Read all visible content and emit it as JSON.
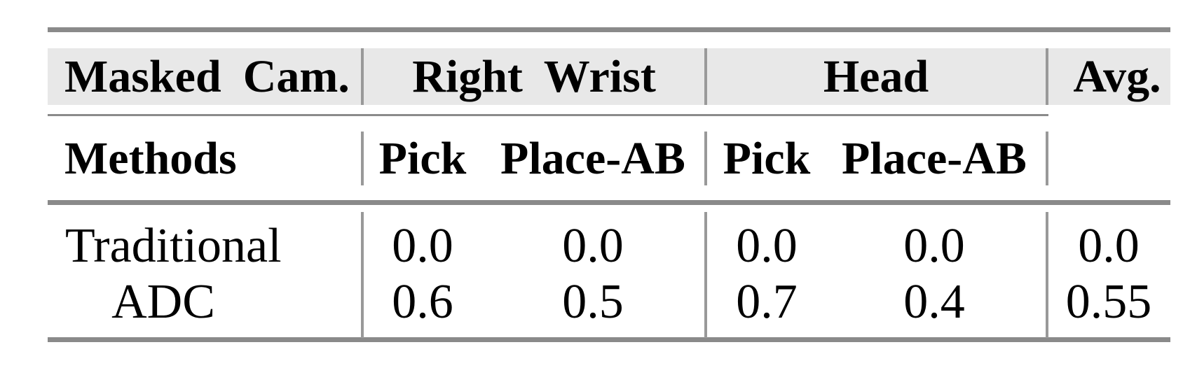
{
  "colors": {
    "page_bg": "#ffffff",
    "rule": "#8a8a8a",
    "divider": "#999999",
    "header_bg": "#e8e8e8",
    "text": "#000000"
  },
  "table": {
    "header_row1": {
      "masked_cam": "Masked Cam.",
      "right_wrist": "Right Wrist",
      "head": "Head",
      "avg": "Avg."
    },
    "header_row2": {
      "methods": "Methods",
      "rw_pick": "Pick",
      "rw_place_ab": "Place-AB",
      "head_pick": "Pick",
      "head_place_ab": "Place-AB"
    },
    "rows": [
      {
        "method": "Traditional",
        "values": [
          "0.0",
          "0.0",
          "0.0",
          "0.0",
          "0.0"
        ]
      },
      {
        "method": "ADC",
        "values": [
          "0.6",
          "0.5",
          "0.7",
          "0.4",
          "0.55"
        ]
      }
    ]
  },
  "chart_data": {
    "type": "table",
    "columns": [
      "Masked Cam. Methods",
      "Right Wrist Pick",
      "Right Wrist Place-AB",
      "Head Pick",
      "Head Place-AB",
      "Avg."
    ],
    "rows": [
      [
        "Traditional",
        0.0,
        0.0,
        0.0,
        0.0,
        0.0
      ],
      [
        "ADC",
        0.6,
        0.5,
        0.7,
        0.4,
        0.55
      ]
    ]
  }
}
